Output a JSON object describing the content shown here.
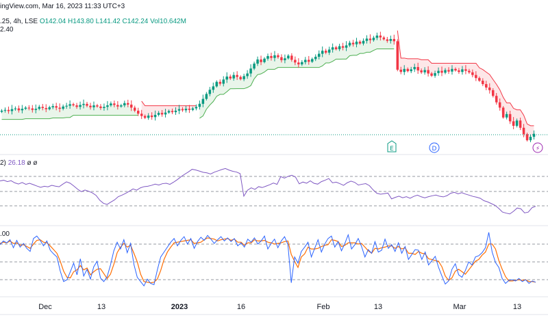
{
  "header": {
    "source_line": "ingView.com, Mar 16, 2023 11:33 UTC+3",
    "symbol_tail": ".25, 4h, LSE",
    "ohlc": {
      "o": "O142.04",
      "h": "H143.80",
      "l": "L141.42",
      "c": "C142.24"
    },
    "volume": "Vol10.642M",
    "price_tail": "2.40",
    "rsi_label": "2)",
    "rsi_value": "26.18",
    "rsi_extra": "ø ø",
    "stoch_value": ".00"
  },
  "events": [
    {
      "letter": "E",
      "name": "earnings",
      "color": "#089981"
    },
    {
      "letter": "D",
      "name": "dividend",
      "color": "#2962ff"
    },
    {
      "letter": "⚡",
      "name": "news",
      "color": "#9c27b0"
    }
  ],
  "colors": {
    "up": "#089981",
    "down": "#f23645",
    "st_up": "#4caf50",
    "st_down": "#f23645",
    "rsi": "#7e57c2",
    "k": "#2962ff",
    "d": "#ff6d00",
    "grid_dash": "#9598a1",
    "sep": "#e0e3eb"
  },
  "chart_data": {
    "type": "line",
    "x_ticks": [
      "Dec",
      "13",
      "2023",
      "16",
      "Feb",
      "13",
      "Mar",
      "13"
    ],
    "bold_ticks": [
      "2023"
    ],
    "price_closes": [
      130.4,
      130.6,
      130.3,
      130.8,
      131.0,
      130.5,
      130.9,
      131.2,
      131.0,
      130.6,
      130.9,
      131.4,
      131.1,
      130.8,
      131.3,
      131.6,
      131.2,
      130.9,
      131.5,
      131.7,
      132.1,
      131.8,
      131.4,
      131.9,
      132.2,
      131.7,
      131.3,
      131.8,
      131.5,
      131.1,
      131.4,
      131.8,
      132.3,
      131.9,
      131.5,
      131.8,
      132.4,
      132.0,
      131.2,
      130.4,
      129.6,
      129.0,
      128.5,
      129.1,
      128.7,
      129.3,
      129.8,
      129.4,
      129.9,
      130.3,
      130.0,
      130.4,
      130.8,
      130.5,
      130.9,
      130.6,
      131.0,
      131.4,
      132.2,
      133.5,
      134.8,
      135.9,
      136.8,
      138.0,
      137.5,
      138.6,
      139.4,
      138.9,
      139.8,
      139.3,
      138.7,
      139.5,
      140.2,
      141.5,
      142.8,
      143.9,
      143.2,
      144.1,
      144.8,
      144.3,
      145.0,
      144.5,
      143.7,
      144.2,
      144.9,
      143.8,
      143.1,
      142.6,
      143.2,
      143.8,
      143.3,
      144.0,
      144.6,
      145.4,
      146.2,
      145.7,
      146.5,
      147.1,
      146.6,
      147.4,
      147.0,
      147.6,
      148.3,
      147.9,
      148.6,
      148.1,
      148.8,
      149.4,
      149.0,
      149.6,
      150.2,
      149.7,
      149.2,
      148.8,
      149.3,
      148.7,
      141.2,
      140.6,
      141.4,
      140.8,
      141.3,
      141.9,
      141.0,
      140.5,
      141.1,
      140.2,
      139.6,
      140.3,
      140.9,
      140.4,
      141.1,
      140.7,
      141.4,
      141.0,
      140.6,
      141.3,
      140.9,
      140.5,
      139.8,
      139.0,
      138.3,
      137.4,
      136.5,
      135.8,
      134.3,
      132.6,
      131.2,
      128.6,
      129.5,
      127.6,
      126.4,
      127.8,
      125.9,
      124.2,
      122.6,
      123.5,
      124.3
    ],
    "price_ylim": [
      121,
      152
    ],
    "rsi_values": [
      60.5,
      61.2,
      59.8,
      60.7,
      58.6,
      57.4,
      58.9,
      57.1,
      58.2,
      56.8,
      55.4,
      54.1,
      55.2,
      54.6,
      56.1,
      55.3,
      54.7,
      57.3,
      59.6,
      58.2,
      55.4,
      52.3,
      49.8,
      51.4,
      50.2,
      48.6,
      46.1,
      41.3,
      38.2,
      37.1,
      39.4,
      41.6,
      44.8,
      46.3,
      48.1,
      50.2,
      52.5,
      51.3,
      53.6,
      54.8,
      55.2,
      56.1,
      57.3,
      56.4,
      57.8,
      58.2,
      57.1,
      59.3,
      61.8,
      64.7,
      67.2,
      69.5,
      72.1,
      71.4,
      70.3,
      69.1,
      68.6,
      67.4,
      69.2,
      70.5,
      71.8,
      72.9,
      71.3,
      70.1,
      69.4,
      67.8,
      45.3,
      51.2,
      53.6,
      52.1,
      54.8,
      53.9,
      55.3,
      56.7,
      58.4,
      57.1,
      64.8,
      63.3,
      65.1,
      66.2,
      64.3,
      57.6,
      59.4,
      58.2,
      60.6,
      58.1,
      57.3,
      59.8,
      61.2,
      62.9,
      58.6,
      59.3,
      57.8,
      56.1,
      58.7,
      60.3,
      59.1,
      56.4,
      57.2,
      57.8,
      55.8,
      51.6,
      48.2,
      47.3,
      47.8,
      48.4,
      42.6,
      44.1,
      45.3,
      43.7,
      44.8,
      43.2,
      45.1,
      46.3,
      44.7,
      43.6,
      44.8,
      45.7,
      46.4,
      45.2,
      44.6,
      45.8,
      48.2,
      49.1,
      47.6,
      48.8,
      47.4,
      46.3,
      45.1,
      44.3,
      43.2,
      40.8,
      39.6,
      37.9,
      36.2,
      33.1,
      29.5,
      28.4,
      27.6,
      30.2,
      33.5,
      32.7,
      28.6,
      29.4,
      33.8,
      35.2
    ],
    "rsi_ylim": [
      20,
      80
    ],
    "stoch_k": [
      78,
      84,
      81,
      86,
      73,
      85,
      74,
      80,
      72,
      67,
      88,
      92,
      85,
      76,
      84,
      69,
      63,
      58,
      35,
      18,
      21,
      34,
      48,
      29,
      55,
      27,
      38,
      22,
      42,
      51,
      24,
      18,
      26,
      45,
      68,
      82,
      71,
      86,
      65,
      80,
      46,
      25,
      18,
      11,
      22,
      15,
      13,
      37,
      58,
      66,
      74,
      82,
      88,
      76,
      85,
      91,
      79,
      88,
      72,
      83,
      90,
      85,
      93,
      87,
      80,
      86,
      91,
      84,
      89,
      83,
      88,
      76,
      81,
      74,
      87,
      82,
      89,
      79,
      84,
      92,
      71,
      80,
      87,
      73,
      84,
      91,
      78,
      16,
      58,
      48,
      67,
      74,
      82,
      58,
      72,
      86,
      66,
      79,
      88,
      92,
      74,
      83,
      68,
      80,
      94,
      71,
      78,
      88,
      75,
      58,
      70,
      64,
      83,
      66,
      69,
      87,
      72,
      78,
      67,
      81,
      64,
      75,
      54,
      62,
      70,
      69,
      54,
      66,
      45,
      52,
      59,
      41,
      27,
      14,
      19,
      38,
      47,
      29,
      25,
      36,
      50,
      45,
      58,
      60,
      65,
      73,
      98,
      66,
      49,
      41,
      23,
      15,
      20,
      21,
      19,
      23,
      18,
      21,
      15,
      19,
      17
    ],
    "stoch_d": [
      80,
      82,
      81,
      84,
      80,
      81,
      77,
      78,
      75,
      72,
      79,
      85,
      86,
      82,
      81,
      76,
      70,
      64,
      51,
      35,
      25,
      24,
      34,
      37,
      44,
      37,
      40,
      29,
      34,
      38,
      39,
      31,
      23,
      30,
      46,
      65,
      74,
      80,
      74,
      77,
      64,
      50,
      30,
      18,
      17,
      16,
      17,
      22,
      36,
      54,
      66,
      74,
      81,
      82,
      83,
      84,
      85,
      86,
      80,
      81,
      82,
      86,
      89,
      88,
      87,
      84,
      86,
      87,
      88,
      85,
      87,
      82,
      82,
      77,
      81,
      81,
      86,
      84,
      84,
      85,
      82,
      81,
      79,
      80,
      81,
      83,
      84,
      62,
      51,
      41,
      58,
      63,
      74,
      71,
      71,
      72,
      75,
      77,
      78,
      86,
      85,
      83,
      75,
      77,
      81,
      81,
      81,
      79,
      80,
      74,
      68,
      64,
      72,
      71,
      73,
      74,
      76,
      76,
      72,
      75,
      71,
      73,
      64,
      64,
      62,
      67,
      64,
      63,
      55,
      54,
      52,
      51,
      42,
      27,
      20,
      24,
      35,
      38,
      34,
      30,
      37,
      44,
      51,
      54,
      61,
      66,
      79,
      79,
      71,
      52,
      38,
      26,
      19,
      19,
      20,
      21,
      20,
      21,
      18,
      18,
      17
    ],
    "stoch_ylim": [
      0,
      100
    ]
  }
}
